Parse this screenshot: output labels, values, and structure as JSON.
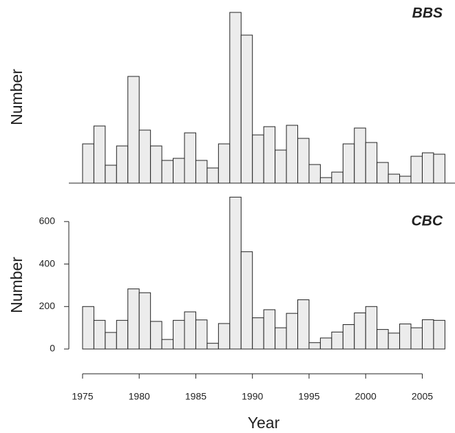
{
  "chart_data": [
    {
      "type": "bar",
      "label": "BBS",
      "y_label": "Number",
      "x": [
        1975,
        1976,
        1977,
        1978,
        1979,
        1980,
        1981,
        1982,
        1983,
        1984,
        1985,
        1986,
        1987,
        1988,
        1989,
        1990,
        1991,
        1992,
        1993,
        1994,
        1995,
        1996,
        1997,
        1998,
        1999,
        2000,
        2001,
        2002,
        2003,
        2004,
        2005,
        2006
      ],
      "series": [
        {
          "name": "BBS",
          "color": "#ececec",
          "values": [
            57,
            83,
            26,
            54,
            155,
            77,
            54,
            33,
            36,
            73,
            33,
            22,
            57,
            248,
            215,
            70,
            82,
            48,
            84,
            65,
            27,
            8,
            16,
            57,
            80,
            59,
            30,
            13,
            10,
            39,
            44,
            42
          ]
        }
      ],
      "xlim": [
        1974,
        2007.5
      ],
      "ylim": [
        0,
        250
      ]
    },
    {
      "type": "bar",
      "label": "CBC",
      "y_label": "Number",
      "x_label": "Year",
      "x": [
        1975,
        1976,
        1977,
        1978,
        1979,
        1980,
        1981,
        1982,
        1983,
        1984,
        1985,
        1986,
        1987,
        1988,
        1989,
        1990,
        1991,
        1992,
        1993,
        1994,
        1995,
        1996,
        1997,
        1998,
        1999,
        2000,
        2001,
        2002,
        2003,
        2004,
        2005,
        2006
      ],
      "series": [
        {
          "name": "CBC",
          "color": "#ececec",
          "values": [
            200,
            135,
            78,
            135,
            283,
            265,
            130,
            45,
            135,
            175,
            137,
            27,
            120,
            715,
            458,
            147,
            185,
            100,
            168,
            232,
            30,
            52,
            80,
            115,
            170,
            200,
            92,
            75,
            118,
            100,
            138,
            135
          ]
        }
      ],
      "xlim": [
        1974,
        2007.5
      ],
      "ylim": [
        0,
        700
      ],
      "yticks": [
        0,
        200,
        400,
        600
      ],
      "xticks": [
        1975,
        1980,
        1985,
        1990,
        1995,
        2000,
        2005
      ]
    }
  ]
}
